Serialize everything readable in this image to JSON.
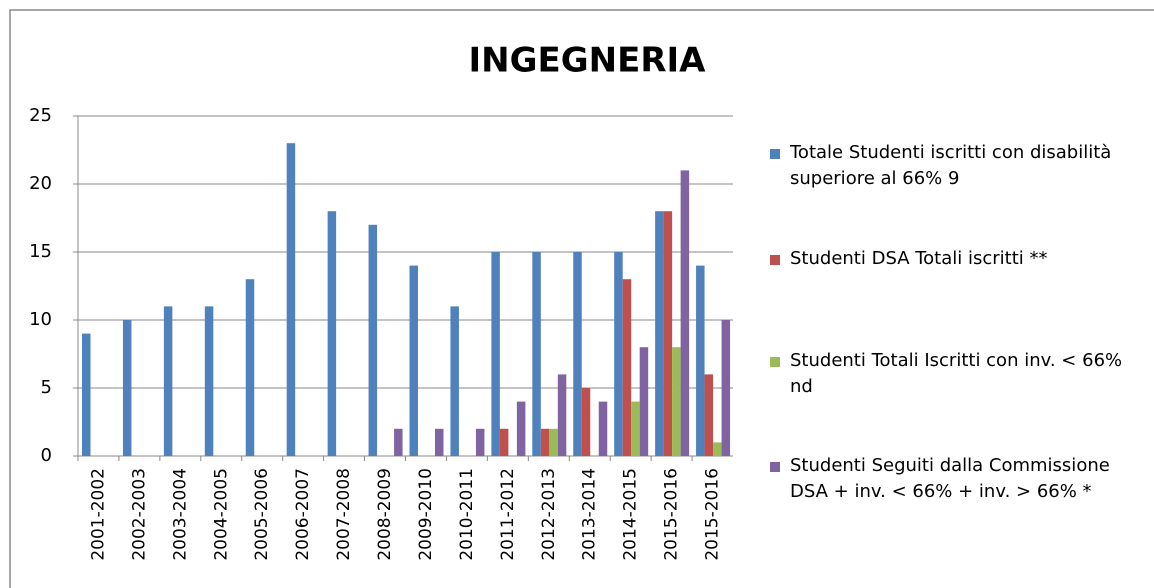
{
  "chart_data": {
    "type": "bar",
    "title": "INGEGNERIA",
    "categories": [
      "2001-2002",
      "2002-2003",
      "2003-2004",
      "2004-2005",
      "2005-2006",
      "2006-2007",
      "2007-2008",
      "2008-2009",
      "2009-2010",
      "2010-2011",
      "2011-2012",
      "2012-2013",
      "2013-2014",
      "2014-2015",
      "2015-2016",
      "2015-2016"
    ],
    "series": [
      {
        "name": "Totale Studenti iscritti con disabilità superiore al 66% 9",
        "color": "#4f81bd",
        "values": [
          9,
          10,
          11,
          11,
          13,
          23,
          18,
          17,
          14,
          11,
          15,
          15,
          15,
          15,
          18,
          14
        ]
      },
      {
        "name": "Studenti DSA Totali iscritti **",
        "color": "#c0504d",
        "values": [
          null,
          null,
          null,
          null,
          null,
          null,
          null,
          null,
          null,
          null,
          2,
          2,
          5,
          13,
          18,
          6
        ]
      },
      {
        "name": "Studenti Totali Iscritti con inv. < 66% nd",
        "color": "#9bbb59",
        "values": [
          null,
          null,
          null,
          null,
          null,
          null,
          null,
          null,
          null,
          null,
          null,
          2,
          null,
          4,
          8,
          1
        ]
      },
      {
        "name": "Studenti Seguiti dalla Commissione DSA + inv. < 66% + inv. > 66% *",
        "color": "#8064a2",
        "values": [
          null,
          null,
          null,
          null,
          null,
          null,
          null,
          2,
          2,
          2,
          4,
          6,
          4,
          8,
          21,
          10
        ]
      }
    ],
    "ylim": [
      0,
      25
    ],
    "yticks": [
      0,
      5,
      10,
      15,
      20,
      25
    ],
    "grid": true,
    "legend": "right"
  }
}
